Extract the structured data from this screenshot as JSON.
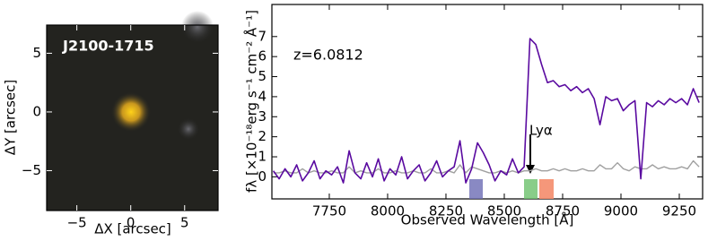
{
  "chart_data": [
    {
      "type": "image",
      "title": "J2100-1715",
      "xlabel": "ΔX [arcsec]",
      "ylabel": "ΔY [arcsec]",
      "xlim": [
        -7.8,
        8.1
      ],
      "ylim": [
        -8.4,
        7.4
      ],
      "xticks": [
        {
          "value": -5,
          "label": "−5"
        },
        0,
        5
      ],
      "yticks": [
        {
          "value": -5,
          "label": "−5"
        },
        0,
        5
      ]
    },
    {
      "type": "line",
      "annotations": [
        "z=6.0812",
        "Lyα"
      ],
      "xlabel": "Observed Wavelength [Å]",
      "ylabel": "fλ [×10⁻¹⁸erg s⁻¹ cm⁻² Å⁻¹]",
      "xlim": [
        7504,
        9350
      ],
      "ylim": [
        -1.1,
        8.6
      ],
      "xticks": [
        7750,
        8000,
        8250,
        8500,
        8750,
        9000,
        9250
      ],
      "yticks": [
        0,
        1,
        2,
        3,
        4,
        5,
        6,
        7
      ],
      "x": [
        7510,
        7535,
        7560,
        7585,
        7610,
        7635,
        7660,
        7685,
        7710,
        7735,
        7760,
        7785,
        7810,
        7835,
        7860,
        7885,
        7910,
        7935,
        7960,
        7985,
        8010,
        8035,
        8060,
        8085,
        8110,
        8135,
        8160,
        8185,
        8210,
        8235,
        8260,
        8285,
        8310,
        8335,
        8360,
        8385,
        8410,
        8435,
        8460,
        8485,
        8510,
        8535,
        8560,
        8585,
        8610,
        8635,
        8660,
        8685,
        8710,
        8735,
        8760,
        8785,
        8810,
        8835,
        8860,
        8885,
        8910,
        8935,
        8960,
        8985,
        9010,
        9035,
        9060,
        9085,
        9110,
        9135,
        9160,
        9185,
        9210,
        9235,
        9260,
        9285,
        9310,
        9335
      ],
      "series": [
        {
          "color": "#a0a0a0",
          "values": [
            0.2,
            0.2,
            0.3,
            0.2,
            0.2,
            0.4,
            0.2,
            0.3,
            0.2,
            0.2,
            0.3,
            0.2,
            0.2,
            0.5,
            0.2,
            0.3,
            0.2,
            0.2,
            0.4,
            0.2,
            0.2,
            0.3,
            0.2,
            0.2,
            0.3,
            0.2,
            0.2,
            0.4,
            0.2,
            0.2,
            0.3,
            0.2,
            0.6,
            0.2,
            0.5,
            0.4,
            0.3,
            0.2,
            0.2,
            0.3,
            0.2,
            0.3,
            0.2,
            0.3,
            0.3,
            0.4,
            0.3,
            0.3,
            0.4,
            0.3,
            0.4,
            0.3,
            0.3,
            0.4,
            0.3,
            0.3,
            0.6,
            0.4,
            0.4,
            0.7,
            0.4,
            0.3,
            0.5,
            0.4,
            0.4,
            0.6,
            0.4,
            0.5,
            0.4,
            0.4,
            0.5,
            0.4,
            0.8,
            0.5
          ]
        },
        {
          "color": "#5a0aa0",
          "values": [
            0.3,
            -0.1,
            0.4,
            0.0,
            0.6,
            -0.2,
            0.2,
            0.8,
            -0.1,
            0.3,
            0.1,
            0.5,
            -0.3,
            1.3,
            0.2,
            -0.1,
            0.7,
            0.0,
            0.9,
            -0.2,
            0.4,
            0.1,
            1.0,
            -0.1,
            0.3,
            0.6,
            -0.2,
            0.2,
            0.8,
            0.0,
            0.3,
            0.5,
            1.8,
            -0.3,
            0.4,
            1.7,
            1.2,
            0.6,
            -0.2,
            0.3,
            0.1,
            0.9,
            0.2,
            0.5,
            6.9,
            6.6,
            5.6,
            4.7,
            4.8,
            4.5,
            4.6,
            4.3,
            4.5,
            4.2,
            4.4,
            3.9,
            2.6,
            4.0,
            3.8,
            3.9,
            3.3,
            3.6,
            3.8,
            -0.1,
            3.7,
            3.5,
            3.8,
            3.6,
            3.9,
            3.7,
            3.9,
            3.6,
            4.4,
            3.7
          ]
        }
      ]
    }
  ]
}
